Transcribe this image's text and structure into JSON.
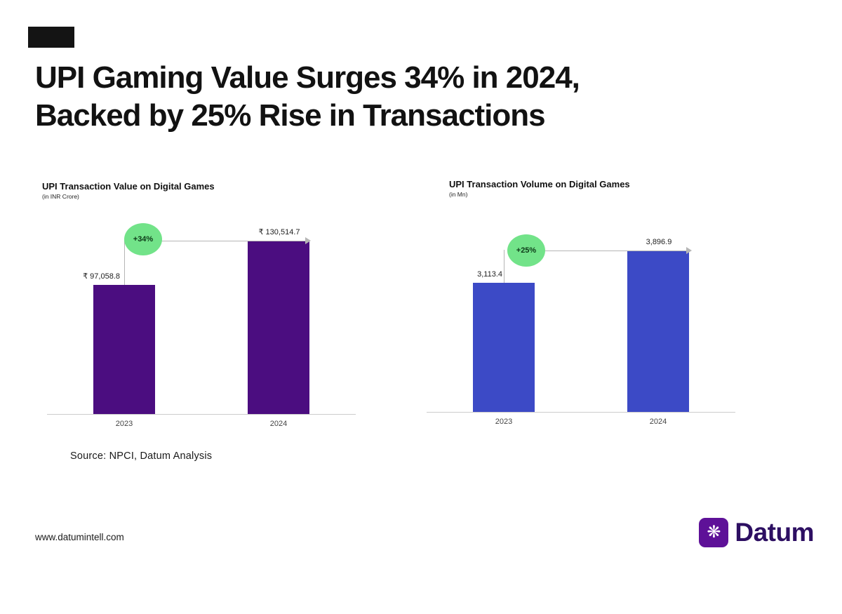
{
  "page": {
    "title_line1": "UPI Gaming Value Surges 34% in 2024,",
    "title_line2": "Backed by 25% Rise in Transactions",
    "source": "Source: NPCI, Datum Analysis",
    "website": "www.datumintell.com",
    "brand": "Datum"
  },
  "icons": {
    "datum_logo_glyph": "❋"
  },
  "colors": {
    "title_text": "#121212",
    "value_purple": "#4b0d80",
    "volume_blue": "#3c4ac6",
    "growth_green": "#72e389",
    "accent_block": "#141414",
    "brand_purple": "#5e1198",
    "wordmark": "#2d0f62",
    "axis_gray": "#cccccc",
    "connector_gray": "#b5b5b5"
  },
  "chart_data": [
    {
      "type": "bar",
      "title": "UPI Transaction Value on Digital Games",
      "subtitle": "(in INR Crore)",
      "categories": [
        "2023",
        "2024"
      ],
      "values": [
        97058.8,
        130514.7
      ],
      "value_labels": [
        "₹ 97,058.8",
        "₹ 130,514.7"
      ],
      "growth_label": "+34%",
      "growth_pct": 34,
      "bar_color": "#4b0d80",
      "ylabel": "INR Crore",
      "ylim": [
        0,
        135000
      ],
      "grid": false,
      "legend": false
    },
    {
      "type": "bar",
      "title": "UPI Transaction Volume on Digital Games",
      "subtitle": "(in Mn)",
      "categories": [
        "2023",
        "2024"
      ],
      "values": [
        3113.4,
        3896.9
      ],
      "value_labels": [
        "3,113.4",
        "3,896.9"
      ],
      "growth_label": "+25%",
      "growth_pct": 25,
      "bar_color": "#3c4ac6",
      "ylabel": "Mn",
      "ylim": [
        0,
        4000
      ],
      "grid": false,
      "legend": false
    }
  ]
}
